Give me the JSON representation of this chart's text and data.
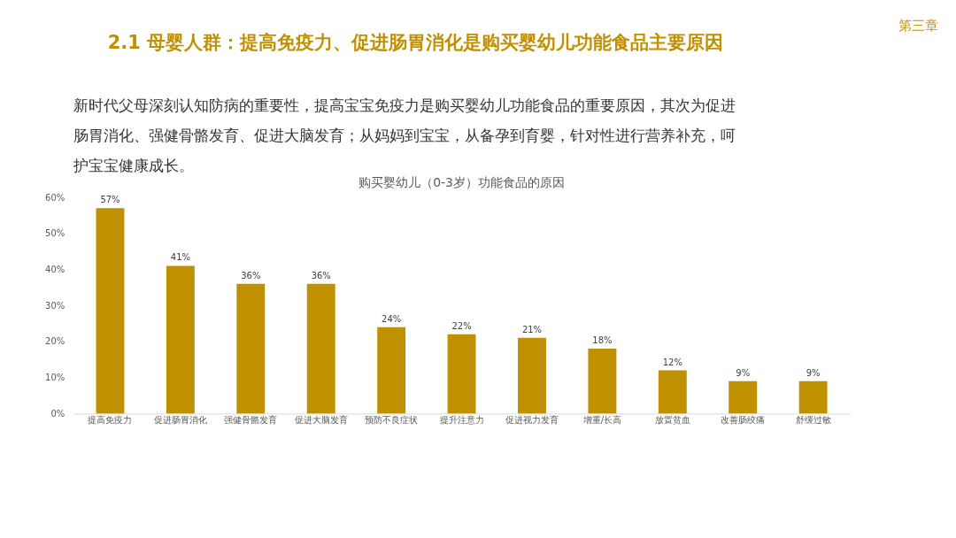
{
  "chart_data": {
    "type": "bar",
    "title": "购买婴幼儿（0-3岁）功能食品的原因",
    "categories": [
      "提高免疫力",
      "促进肠胃消化",
      "强健骨骼发育",
      "促进大脑发育",
      "预防不良症状",
      "提升注意力",
      "促进视力发育",
      "增重/长高",
      "放置贫血",
      "改善肠绞痛",
      "舒缓过敏"
    ],
    "values": [
      57,
      41,
      36,
      36,
      24,
      22,
      21,
      18,
      12,
      9,
      9
    ],
    "value_labels": [
      "57%",
      "41%",
      "36%",
      "36%",
      "24%",
      "22%",
      "21%",
      "18%",
      "12%",
      "9%",
      "9%"
    ],
    "color": "#bf9000",
    "ylim": [
      0,
      60
    ],
    "yticks": [
      {
        "value": 0,
        "label": "0%"
      },
      {
        "value": 10,
        "label": "10%"
      },
      {
        "value": 20,
        "label": "20%"
      },
      {
        "value": 30,
        "label": "30%"
      },
      {
        "value": 40,
        "label": "40%"
      },
      {
        "value": 50,
        "label": "50%"
      },
      {
        "value": 60,
        "label": "60%"
      }
    ],
    "grid": false,
    "annotations": [
      "2.1 母婴人群：提高免疫力、促进肠胃消化是购买婴幼儿功能食品主要原因",
      "第三章",
      "新时代父母深刻认知防病的重要性，提高宝宝免疫力是购买婴幼儿功能食品的重要原因，其次为促进肠胃消化、强健骨骼发育、促进大脑发育；从妈妈到宝宝，从备孕到育婴，针对性进行营养补充，呵护宝宝健康成长。"
    ]
  }
}
